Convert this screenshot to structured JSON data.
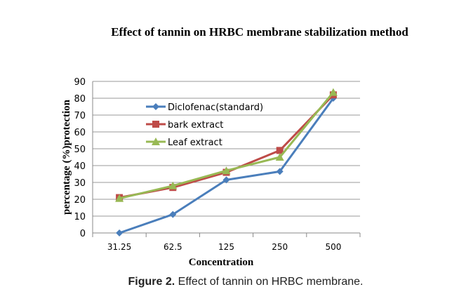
{
  "chart_data": {
    "type": "line",
    "title": "Effect of tannin on HRBC membrane stabilization method",
    "xlabel": "Concentration",
    "ylabel": "percentage (%)protection",
    "categories": [
      "31.25",
      "62.5",
      "125",
      "250",
      "500"
    ],
    "ylim": [
      0,
      90
    ],
    "yticks": [
      0,
      10,
      20,
      30,
      40,
      50,
      60,
      70,
      80,
      90
    ],
    "grid": true,
    "legend_position": "upper-left-inside",
    "series": [
      {
        "name": "Diclofenac(standard)",
        "color": "#4a7ebb",
        "marker": "diamond",
        "values": [
          0,
          11,
          31.5,
          36.5,
          80
        ]
      },
      {
        "name": "bark extract",
        "color": "#be4b48",
        "marker": "square",
        "values": [
          21,
          27,
          36,
          49,
          82
        ]
      },
      {
        "name": "Leaf extract",
        "color": "#98b954",
        "marker": "triangle",
        "values": [
          20.5,
          28,
          37,
          45,
          83.5
        ]
      }
    ]
  },
  "caption": {
    "label": "Figure 2.",
    "text": " Effect of tannin on HRBC membrane."
  }
}
